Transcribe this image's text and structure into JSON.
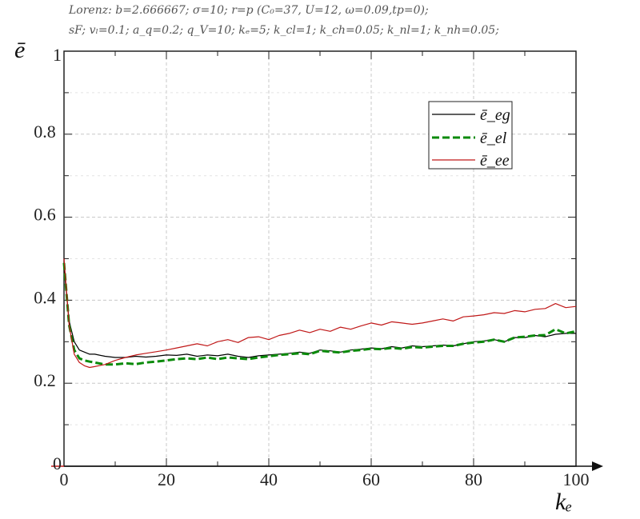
{
  "caption": {
    "line1": "Lorenz: b=2.666667; σ=10; r=p (C₀=37, U=12, ω=0.09,tp=0);",
    "line2": "sF; vₗ=0.1; a_q=0.2; q_V=10; kₑ=5; k_cl=1; k_ch=0.05; k_nl=1; k_nh=0.05;"
  },
  "chart_data": {
    "type": "line",
    "title": "",
    "xlabel": "kₑ",
    "ylabel": "ē",
    "xlim": [
      0,
      100
    ],
    "ylim": [
      0,
      1
    ],
    "x_ticks": [
      0,
      20,
      40,
      60,
      80,
      100
    ],
    "y_ticks": [
      0,
      0.2,
      0.4,
      0.6,
      0.8,
      1
    ],
    "x_tick_labels": [
      "0",
      "20",
      "40",
      "60",
      "80",
      "100"
    ],
    "y_tick_labels": [
      "0",
      "0.2",
      "0.4",
      "0.6",
      "0.8",
      "1"
    ],
    "grid": true,
    "legend_position": "top-right",
    "series": [
      {
        "name": "ē_eg",
        "color": "#000000",
        "style": "solid",
        "x": [
          0,
          1,
          2,
          3,
          4,
          5,
          6,
          8,
          10,
          12,
          14,
          16,
          18,
          20,
          22,
          24,
          26,
          28,
          30,
          32,
          34,
          36,
          38,
          40,
          42,
          44,
          46,
          48,
          50,
          52,
          54,
          56,
          58,
          60,
          62,
          64,
          66,
          68,
          70,
          72,
          74,
          76,
          78,
          80,
          82,
          84,
          86,
          88,
          90,
          92,
          94,
          96,
          98,
          100
        ],
        "y": [
          0.48,
          0.35,
          0.3,
          0.28,
          0.275,
          0.27,
          0.27,
          0.265,
          0.262,
          0.262,
          0.265,
          0.263,
          0.265,
          0.268,
          0.267,
          0.27,
          0.265,
          0.268,
          0.266,
          0.27,
          0.265,
          0.262,
          0.266,
          0.268,
          0.27,
          0.272,
          0.275,
          0.272,
          0.28,
          0.278,
          0.275,
          0.28,
          0.282,
          0.285,
          0.283,
          0.288,
          0.285,
          0.29,
          0.288,
          0.29,
          0.292,
          0.29,
          0.295,
          0.3,
          0.302,
          0.305,
          0.3,
          0.31,
          0.31,
          0.315,
          0.312,
          0.318,
          0.32,
          0.32
        ]
      },
      {
        "name": "ē_el",
        "color": "#0a8a0a",
        "style": "dashed",
        "x": [
          0,
          1,
          2,
          3,
          4,
          5,
          6,
          8,
          10,
          12,
          14,
          16,
          18,
          20,
          22,
          24,
          26,
          28,
          30,
          32,
          34,
          36,
          38,
          40,
          42,
          44,
          46,
          48,
          50,
          52,
          54,
          56,
          58,
          60,
          62,
          64,
          66,
          68,
          70,
          72,
          74,
          76,
          78,
          80,
          82,
          84,
          86,
          88,
          90,
          92,
          94,
          96,
          98,
          100
        ],
        "y": [
          0.49,
          0.34,
          0.28,
          0.26,
          0.255,
          0.252,
          0.25,
          0.245,
          0.245,
          0.248,
          0.246,
          0.25,
          0.252,
          0.255,
          0.258,
          0.26,
          0.258,
          0.262,
          0.258,
          0.262,
          0.26,
          0.258,
          0.262,
          0.265,
          0.268,
          0.27,
          0.272,
          0.27,
          0.278,
          0.276,
          0.274,
          0.278,
          0.28,
          0.283,
          0.282,
          0.285,
          0.283,
          0.287,
          0.286,
          0.288,
          0.29,
          0.29,
          0.295,
          0.298,
          0.3,
          0.305,
          0.3,
          0.31,
          0.312,
          0.315,
          0.316,
          0.33,
          0.32,
          0.325
        ]
      },
      {
        "name": "ē_ee",
        "color": "#c01818",
        "style": "solid",
        "x": [
          0,
          1,
          2,
          3,
          4,
          5,
          6,
          8,
          10,
          12,
          14,
          16,
          18,
          20,
          22,
          24,
          26,
          28,
          30,
          32,
          34,
          36,
          38,
          40,
          42,
          44,
          46,
          48,
          50,
          52,
          54,
          56,
          58,
          60,
          62,
          64,
          66,
          68,
          70,
          72,
          74,
          76,
          78,
          80,
          82,
          84,
          86,
          88,
          90,
          92,
          94,
          96,
          98,
          100
        ],
        "y": [
          0.5,
          0.34,
          0.27,
          0.25,
          0.242,
          0.238,
          0.24,
          0.245,
          0.255,
          0.262,
          0.268,
          0.272,
          0.276,
          0.28,
          0.285,
          0.29,
          0.295,
          0.29,
          0.3,
          0.305,
          0.298,
          0.31,
          0.312,
          0.305,
          0.315,
          0.32,
          0.328,
          0.322,
          0.33,
          0.325,
          0.335,
          0.33,
          0.338,
          0.345,
          0.34,
          0.348,
          0.345,
          0.342,
          0.345,
          0.35,
          0.355,
          0.35,
          0.36,
          0.362,
          0.365,
          0.37,
          0.368,
          0.375,
          0.372,
          0.378,
          0.38,
          0.392,
          0.382,
          0.385
        ]
      }
    ]
  }
}
